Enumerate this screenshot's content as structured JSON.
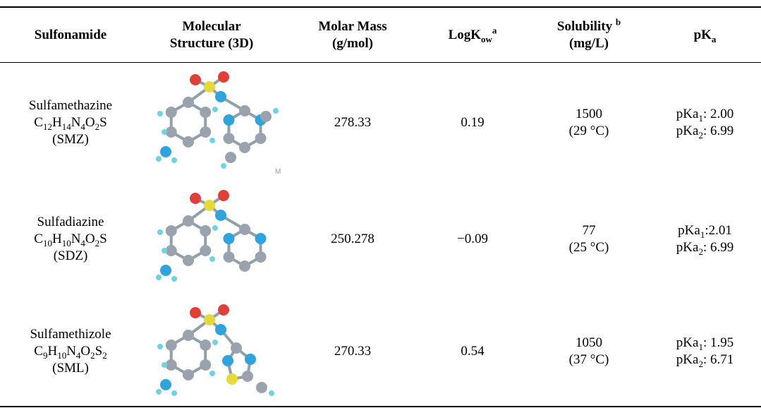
{
  "table": {
    "header": [
      [
        [
          {
            "text": "Sulfonamide"
          }
        ]
      ],
      [
        [
          {
            "text": "Molecular"
          }
        ],
        [
          {
            "text": "Structure (3D)"
          }
        ]
      ],
      [
        [
          {
            "text": "Molar Mass"
          }
        ],
        [
          {
            "text": "(g/mol)"
          }
        ]
      ],
      [
        [
          {
            "text": "LogK"
          },
          {
            "sub": "ow"
          },
          {
            "sup": "a"
          }
        ]
      ],
      [
        [
          {
            "text": "Solubility "
          },
          {
            "sup": "b"
          }
        ],
        [
          {
            "text": "(mg/L)"
          }
        ]
      ],
      [
        [
          {
            "text": "pK"
          },
          {
            "sub": "a"
          }
        ]
      ]
    ],
    "rows": [
      {
        "compound": [
          [
            {
              "text": "Sulfamethazine"
            }
          ],
          [
            {
              "text": "C"
            },
            {
              "sub": "12"
            },
            {
              "text": "H"
            },
            {
              "sub": "14"
            },
            {
              "text": "N"
            },
            {
              "sub": "4"
            },
            {
              "text": "O"
            },
            {
              "sub": "2"
            },
            {
              "text": "S"
            }
          ],
          [
            {
              "text": "(SMZ)"
            }
          ]
        ],
        "watermark": "M",
        "properties": [
          [
            [
              {
                "text": "278.33"
              }
            ]
          ],
          [
            [
              {
                "text": "0.19"
              }
            ]
          ],
          [
            [
              {
                "text": "1500"
              }
            ],
            [
              {
                "text": "(29 °C)"
              }
            ]
          ],
          [
            [
              {
                "text": "pKa"
              },
              {
                "sub": "1"
              },
              {
                "text": ": 2.00"
              }
            ],
            [
              {
                "text": "pKa"
              },
              {
                "sub": "2"
              },
              {
                "text": ": 6.99"
              }
            ]
          ]
        ]
      },
      {
        "compound": [
          [
            {
              "text": "Sulfadiazine"
            }
          ],
          [
            {
              "text": "C"
            },
            {
              "sub": "10"
            },
            {
              "text": "H"
            },
            {
              "sub": "10"
            },
            {
              "text": "N"
            },
            {
              "sub": "4"
            },
            {
              "text": "O"
            },
            {
              "sub": "2"
            },
            {
              "text": "S"
            }
          ],
          [
            {
              "text": "(SDZ)"
            }
          ]
        ],
        "properties": [
          [
            [
              {
                "text": "250.278"
              }
            ]
          ],
          [
            [
              {
                "text": "−0.09"
              }
            ]
          ],
          [
            [
              {
                "text": "77"
              }
            ],
            [
              {
                "text": "(25 °C)"
              }
            ]
          ],
          [
            [
              {
                "text": "pKa"
              },
              {
                "sub": "1"
              },
              {
                "text": ":2.01"
              }
            ],
            [
              {
                "text": "pKa"
              },
              {
                "sub": "2"
              },
              {
                "text": ": 6.99"
              }
            ]
          ]
        ]
      },
      {
        "compound": [
          [
            {
              "text": "Sulfamethizole"
            }
          ],
          [
            {
              "text": "C"
            },
            {
              "sub": "9"
            },
            {
              "text": "H"
            },
            {
              "sub": "10"
            },
            {
              "text": "N"
            },
            {
              "sub": "4"
            },
            {
              "text": "O"
            },
            {
              "sub": "2"
            },
            {
              "text": "S"
            },
            {
              "sub": "2"
            }
          ],
          [
            {
              "text": "(SML)"
            }
          ]
        ],
        "properties": [
          [
            [
              {
                "text": "270.33"
              }
            ]
          ],
          [
            [
              {
                "text": "0.54"
              }
            ]
          ],
          [
            [
              {
                "text": "1050"
              }
            ],
            [
              {
                "text": "(37 °C)"
              }
            ]
          ],
          [
            [
              {
                "text": "pKa"
              },
              {
                "sub": "1"
              },
              {
                "text": ": 1.95"
              }
            ],
            [
              {
                "text": "pKa"
              },
              {
                "sub": "2"
              },
              {
                "text": ": 6.71"
              }
            ]
          ]
        ]
      }
    ]
  }
}
